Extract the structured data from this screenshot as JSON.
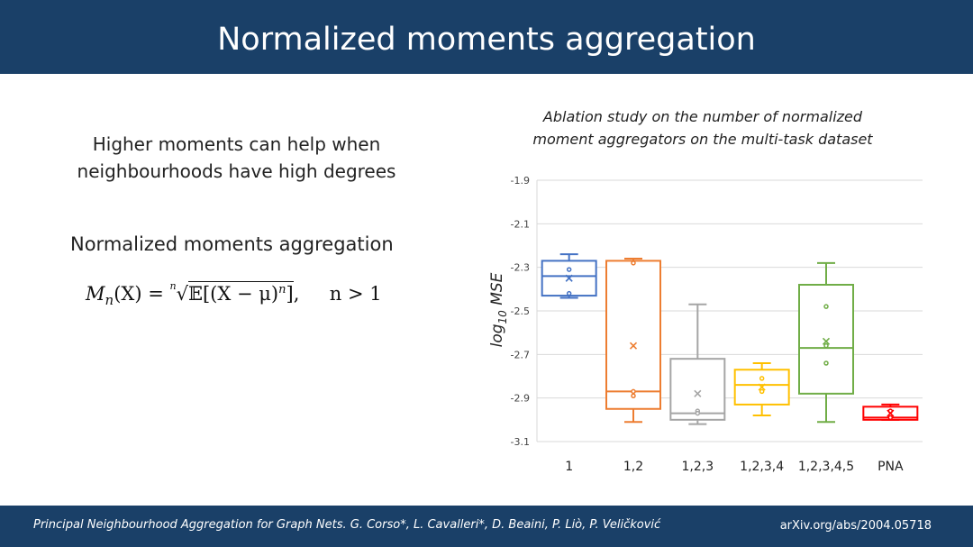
{
  "header": {
    "title": "Normalized moments aggregation"
  },
  "left": {
    "text_line1": "Higher moments can help when",
    "text_line2": "neighbourhoods have high degrees",
    "subtitle": "Normalized moments aggregation",
    "formula": {
      "lhs": "M",
      "sub": "n",
      "arg": "(X) = ",
      "root_index": "n",
      "radicand": "𝔼[(X − μ)",
      "power": "n",
      "close": "]",
      "condition": ",     n > 1"
    }
  },
  "chart_data": {
    "type": "boxplot",
    "title_line1": "Ablation study on the number of normalized",
    "title_line2": "moment aggregators on the multi-task dataset",
    "ylabel": "log",
    "ylabel_sub": "10",
    "ylabel_suffix": " MSE",
    "ylim": [
      -3.1,
      -1.9
    ],
    "yticks": [
      -1.9,
      -2.1,
      -2.3,
      -2.5,
      -2.7,
      -2.9,
      -3.1
    ],
    "ytick_labels": [
      "-1.9",
      "-2.1",
      "-2.3",
      "-2.5",
      "-2.7",
      "-2.9",
      "-3.1"
    ],
    "grid": true,
    "categories": [
      "1",
      "1,2",
      "1,2,3",
      "1,2,3,4",
      "1,2,3,4,5",
      "PNA"
    ],
    "boxes": [
      {
        "category": "1",
        "color": "#4472c4",
        "min": -2.44,
        "q1": -2.43,
        "median": -2.34,
        "q3": -2.27,
        "max": -2.24,
        "mean": -2.35,
        "points": [
          -2.31,
          -2.42
        ]
      },
      {
        "category": "1,2",
        "color": "#ed7d31",
        "min": -3.01,
        "q1": -2.95,
        "median": -2.87,
        "q3": -2.27,
        "max": -2.26,
        "mean": -2.66,
        "points": [
          -2.28,
          -2.87,
          -2.89
        ]
      },
      {
        "category": "1,2,3",
        "color": "#a5a5a5",
        "min": -3.02,
        "q1": -3.0,
        "median": -2.97,
        "q3": -2.72,
        "max": -2.47,
        "mean": -2.88,
        "points": [
          -2.96,
          -2.97
        ]
      },
      {
        "category": "1,2,3,4",
        "color": "#ffc000",
        "min": -2.98,
        "q1": -2.93,
        "median": -2.84,
        "q3": -2.77,
        "max": -2.74,
        "mean": -2.85,
        "points": [
          -2.81,
          -2.87
        ]
      },
      {
        "category": "1,2,3,4,5",
        "color": "#70ad47",
        "min": -3.01,
        "q1": -2.88,
        "median": -2.67,
        "q3": -2.38,
        "max": -2.28,
        "mean": -2.64,
        "points": [
          -2.48,
          -2.66,
          -2.74
        ]
      },
      {
        "category": "PNA",
        "color": "#ff0000",
        "min": -3.0,
        "q1": -3.0,
        "median": -2.99,
        "q3": -2.94,
        "max": -2.93,
        "mean": -2.97,
        "points": [
          -2.96,
          -2.99
        ]
      }
    ]
  },
  "footer": {
    "citation": "Principal Neighbourhood Aggregation for Graph Nets. G. Corso*, L. Cavalleri*, D. Beaini, P. Liò, P. Veličković",
    "arxiv": "arXiv.org/abs/2004.05718"
  }
}
